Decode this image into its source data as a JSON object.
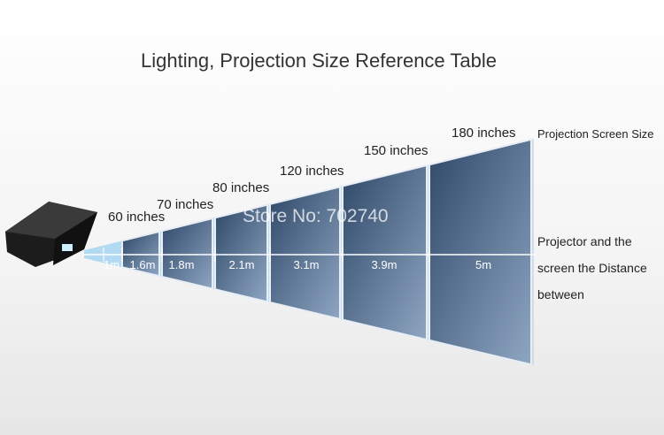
{
  "title": "Lighting, Projection Size Reference Table",
  "screen_sizes": [
    "60 inches",
    "70 inches",
    "80 inches",
    "120 inches",
    "150 inches",
    "180 inches"
  ],
  "distances": [
    "1m",
    "1.6m",
    "1.8m",
    "2.1m",
    "3.1m",
    "3.9m",
    "5m"
  ],
  "size_caption": "Projection Screen Size",
  "distance_caption": [
    "Projector and the",
    "screen the Distance",
    "between"
  ],
  "watermark": "Store No: 702740"
}
